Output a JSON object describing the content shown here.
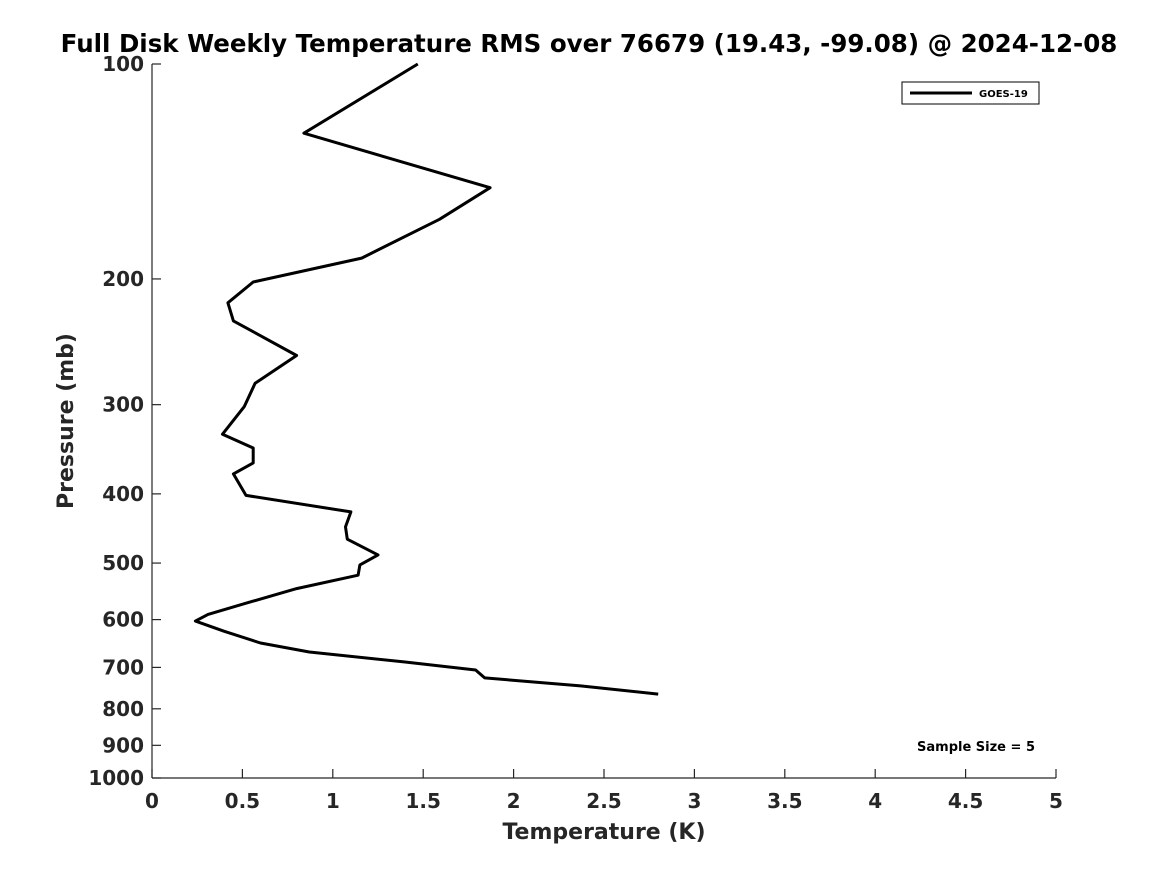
{
  "chart_data": {
    "type": "line",
    "title": "Full Disk Weekly Temperature RMS over 76679 (19.43, -99.08) @ 2024-12-08",
    "xlabel": "Temperature (K)",
    "ylabel": "Pressure (mb)",
    "xlim": [
      0,
      5
    ],
    "ylim": [
      1000,
      100
    ],
    "yscale": "log",
    "y_inverted": true,
    "x_ticks": [
      0,
      0.5,
      1,
      1.5,
      2,
      2.5,
      3,
      3.5,
      4,
      4.5,
      5
    ],
    "x_tick_labels": [
      "0",
      "0.5",
      "1",
      "1.5",
      "2",
      "2.5",
      "3",
      "3.5",
      "4",
      "4.5",
      "5"
    ],
    "y_ticks": [
      100,
      200,
      300,
      400,
      500,
      600,
      700,
      800,
      900,
      1000
    ],
    "y_tick_labels": [
      "100",
      "200",
      "300",
      "400",
      "500",
      "600",
      "700",
      "800",
      "900",
      "1000"
    ],
    "grid": false,
    "legend_position": "top-right",
    "series": [
      {
        "name": "GOES-19",
        "color": "#000000",
        "x": [
          1.47,
          0.84,
          1.87,
          1.59,
          1.16,
          0.56,
          0.42,
          0.45,
          0.8,
          0.57,
          0.51,
          0.39,
          0.56,
          0.56,
          0.45,
          0.52,
          1.1,
          1.07,
          1.08,
          1.25,
          1.15,
          1.14,
          0.8,
          0.52,
          0.31,
          0.24,
          0.4,
          0.6,
          0.87,
          1.4,
          1.79,
          1.84,
          2.37,
          2.8
        ],
        "y": [
          100,
          125,
          149,
          165,
          187,
          202,
          216,
          229,
          256,
          280,
          302,
          330,
          345,
          362,
          375,
          402,
          424,
          445,
          463,
          487,
          503,
          520,
          543,
          569,
          590,
          603,
          623,
          647,
          666,
          688,
          706,
          724,
          743,
          763
        ]
      }
    ],
    "annotations": [
      {
        "text": "Sample Size = 5",
        "position": "bottom-right"
      }
    ]
  }
}
